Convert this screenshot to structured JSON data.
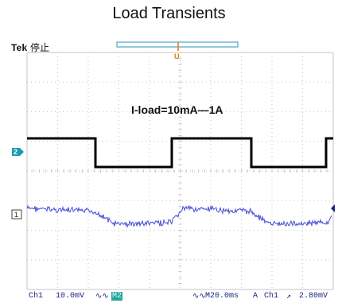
{
  "title": "Load Transients",
  "scope": {
    "brand": "Tek",
    "run_state": "停止",
    "annotation": "I-load=10mA—1A",
    "trigger_marker": "U",
    "ch2_marker": "2",
    "ch1_marker": "1",
    "status": {
      "ch1": "Ch1",
      "ch1_scale": "10.0mV",
      "ch1_coupling": "∿∿",
      "ch2_box": "M2",
      "bw": "∿∿",
      "timebase": "M20.0ms",
      "trigger_mode": "A",
      "trigger_src": "Ch1",
      "slope": "↗",
      "trigger_level": "2.80mV"
    },
    "colors": {
      "grid": "#c4c4c4",
      "load_trace": "#000000",
      "ripple_trace": "#4a4fd6",
      "trigger_marker": "#e07a00",
      "channel_marker": "#1a9bb0"
    }
  }
}
